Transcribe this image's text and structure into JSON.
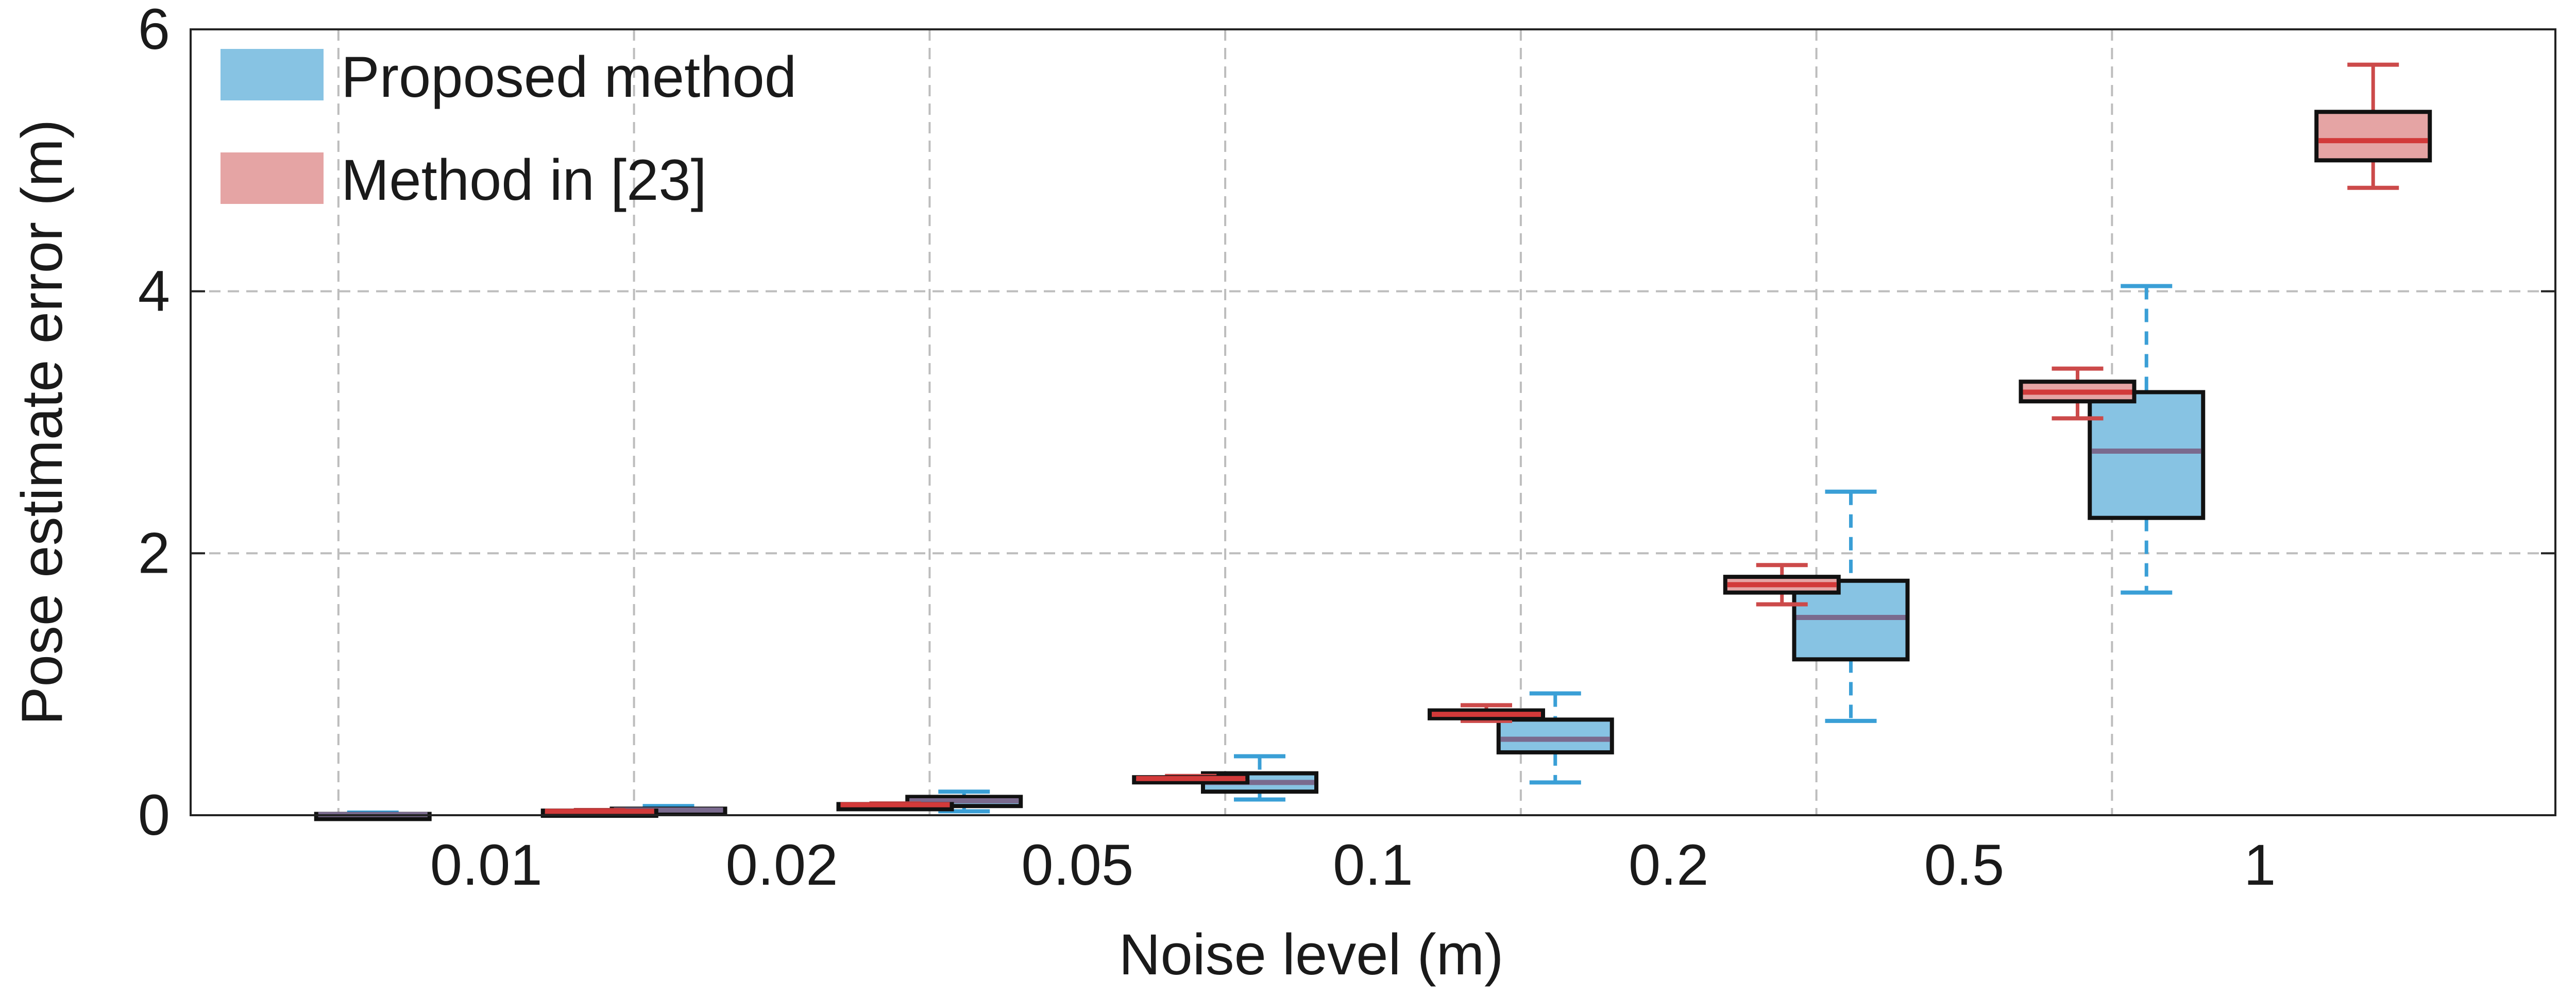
{
  "chart_data": {
    "type": "box",
    "title": "",
    "xlabel": "Noise level (m)",
    "ylabel": "Pose estimate error (m)",
    "categories": [
      "0.01",
      "0.02",
      "0.05",
      "0.1",
      "0.2",
      "0.5",
      "1"
    ],
    "ylim": [
      0,
      6
    ],
    "yticks": [
      0,
      2,
      4,
      6
    ],
    "grid": true,
    "legend_position": "top-left",
    "series": [
      {
        "name": "Proposed method",
        "fill": "#87C3E3",
        "whisker_color": "#3A9FD6",
        "median_color": "#7A6A8E",
        "boxes": [
          {
            "whisker_low": 0.0,
            "q1": 0.0,
            "median": 0.005,
            "q3": 0.01,
            "whisker_high": 0.02
          },
          {
            "whisker_low": 0.01,
            "q1": 0.02,
            "median": 0.04,
            "q3": 0.05,
            "whisker_high": 0.07
          },
          {
            "whisker_low": 0.03,
            "q1": 0.07,
            "median": 0.11,
            "q3": 0.14,
            "whisker_high": 0.18
          },
          {
            "whisker_low": 0.12,
            "q1": 0.18,
            "median": 0.25,
            "q3": 0.32,
            "whisker_high": 0.45
          },
          {
            "whisker_low": 0.25,
            "q1": 0.48,
            "median": 0.58,
            "q3": 0.73,
            "whisker_high": 0.93
          },
          {
            "whisker_low": 0.72,
            "q1": 1.19,
            "median": 1.51,
            "q3": 1.79,
            "whisker_high": 2.47
          },
          {
            "whisker_low": 1.7,
            "q1": 2.27,
            "median": 2.78,
            "q3": 3.23,
            "whisker_high": 4.04
          }
        ]
      },
      {
        "name": "Method in [23]",
        "fill": "#E5A4A4",
        "whisker_color": "#CC4A4A",
        "median_color": "#D23A3A",
        "boxes": [
          {
            "whisker_low": 0.02,
            "q1": 0.02,
            "median": 0.03,
            "q3": 0.035,
            "whisker_high": 0.04
          },
          {
            "whisker_low": 0.07,
            "q1": 0.075,
            "median": 0.08,
            "q3": 0.085,
            "whisker_high": 0.09
          },
          {
            "whisker_low": 0.26,
            "q1": 0.27,
            "median": 0.28,
            "q3": 0.29,
            "whisker_high": 0.3
          },
          {
            "whisker_low": 0.72,
            "q1": 0.74,
            "median": 0.77,
            "q3": 0.8,
            "whisker_high": 0.84
          },
          {
            "whisker_low": 1.61,
            "q1": 1.7,
            "median": 1.76,
            "q3": 1.82,
            "whisker_high": 1.91
          },
          {
            "whisker_low": 3.03,
            "q1": 3.16,
            "median": 3.23,
            "q3": 3.31,
            "whisker_high": 3.41
          },
          {
            "whisker_low": 4.79,
            "q1": 5.0,
            "median": 5.15,
            "q3": 5.37,
            "whisker_high": 5.73
          }
        ]
      }
    ]
  }
}
